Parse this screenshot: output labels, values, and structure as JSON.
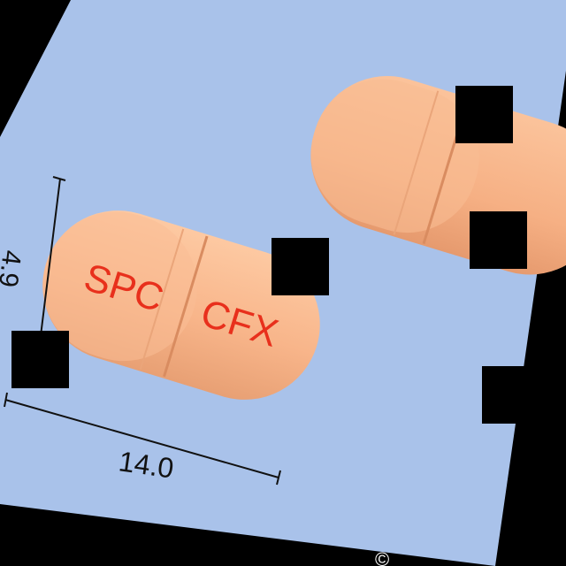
{
  "photo": {
    "background_color": "#A9C2EA",
    "frame_color": "#000000",
    "capsule_color": "#F8B58A",
    "capsule_shadow": "#E59A6C",
    "imprint_color": "#E8301C"
  },
  "capsule_front": {
    "imprint_left": "SPC",
    "imprint_right": "CFX"
  },
  "dimensions": {
    "height_label": "4.9",
    "length_label": "14.0"
  },
  "watermark": "©"
}
